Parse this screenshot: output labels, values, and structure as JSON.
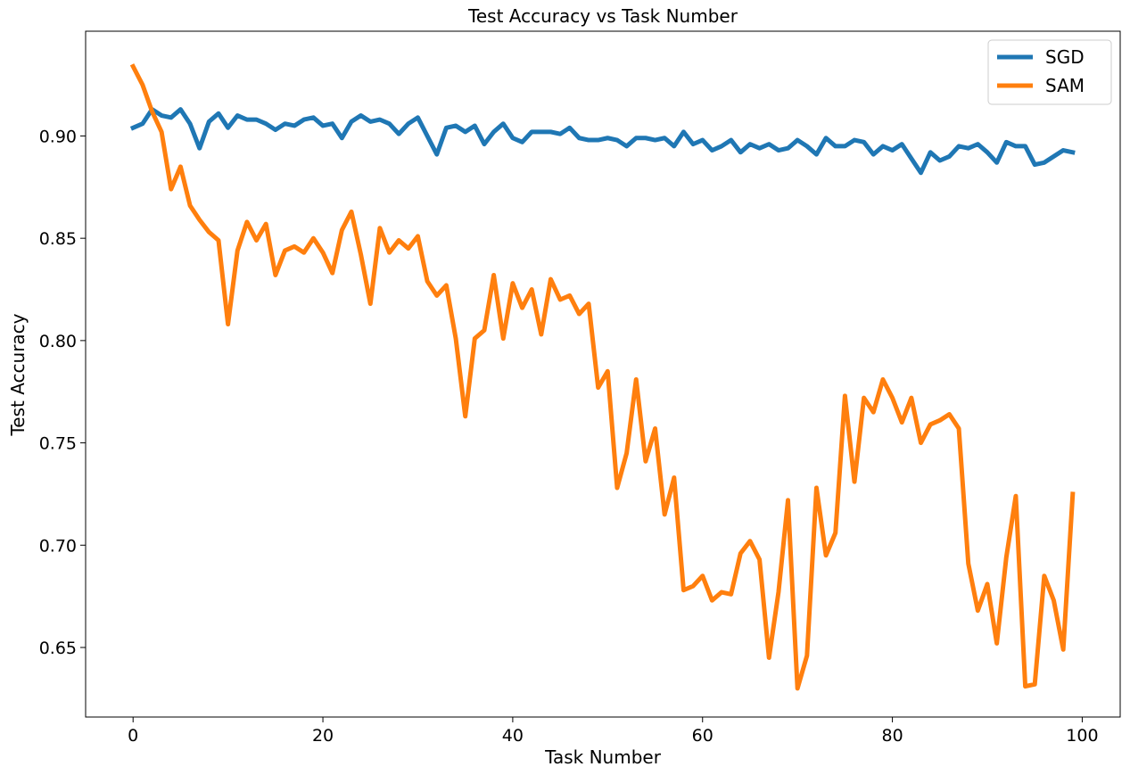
{
  "chart_data": {
    "type": "line",
    "title": "Test Accuracy vs Task Number",
    "xlabel": "Task Number",
    "ylabel": "Test Accuracy",
    "xlim": [
      -5,
      104
    ],
    "ylim": [
      0.616,
      0.9512
    ],
    "xticks": [
      0,
      20,
      40,
      60,
      80,
      100
    ],
    "yticks": [
      0.65,
      0.7,
      0.75,
      0.8,
      0.85,
      0.9
    ],
    "xtick_labels": [
      "0",
      "20",
      "40",
      "60",
      "80",
      "100"
    ],
    "ytick_labels": [
      "0.65",
      "0.70",
      "0.75",
      "0.80",
      "0.85",
      "0.90"
    ],
    "grid": false,
    "legend_position": "top-right",
    "series": [
      {
        "name": "SGD",
        "color": "#1f77b4",
        "values": [
          0.904,
          0.906,
          0.913,
          0.91,
          0.909,
          0.913,
          0.906,
          0.894,
          0.907,
          0.911,
          0.904,
          0.91,
          0.908,
          0.908,
          0.906,
          0.903,
          0.906,
          0.905,
          0.908,
          0.909,
          0.905,
          0.906,
          0.899,
          0.907,
          0.91,
          0.907,
          0.908,
          0.906,
          0.901,
          0.906,
          0.909,
          0.9,
          0.891,
          0.904,
          0.905,
          0.902,
          0.905,
          0.896,
          0.902,
          0.906,
          0.899,
          0.897,
          0.902,
          0.902,
          0.902,
          0.901,
          0.904,
          0.899,
          0.898,
          0.898,
          0.899,
          0.898,
          0.895,
          0.899,
          0.899,
          0.898,
          0.899,
          0.895,
          0.902,
          0.896,
          0.898,
          0.893,
          0.895,
          0.898,
          0.892,
          0.896,
          0.894,
          0.896,
          0.893,
          0.894,
          0.898,
          0.895,
          0.891,
          0.899,
          0.895,
          0.895,
          0.898,
          0.897,
          0.891,
          0.895,
          0.893,
          0.896,
          0.889,
          0.882,
          0.892,
          0.888,
          0.89,
          0.895,
          0.894,
          0.896,
          0.892,
          0.887,
          0.897,
          0.895,
          0.895,
          0.886,
          0.887,
          0.89,
          0.893,
          0.892
        ]
      },
      {
        "name": "SAM",
        "color": "#ff7f0e",
        "values": [
          0.934,
          0.925,
          0.912,
          0.902,
          0.874,
          0.885,
          0.866,
          0.859,
          0.853,
          0.849,
          0.808,
          0.844,
          0.858,
          0.849,
          0.857,
          0.832,
          0.844,
          0.846,
          0.843,
          0.85,
          0.843,
          0.833,
          0.854,
          0.863,
          0.842,
          0.818,
          0.855,
          0.843,
          0.849,
          0.845,
          0.851,
          0.829,
          0.822,
          0.827,
          0.801,
          0.763,
          0.801,
          0.805,
          0.832,
          0.801,
          0.828,
          0.816,
          0.825,
          0.803,
          0.83,
          0.82,
          0.822,
          0.813,
          0.818,
          0.777,
          0.785,
          0.728,
          0.745,
          0.781,
          0.741,
          0.757,
          0.715,
          0.733,
          0.678,
          0.68,
          0.685,
          0.673,
          0.677,
          0.676,
          0.696,
          0.702,
          0.693,
          0.645,
          0.677,
          0.722,
          0.63,
          0.646,
          0.728,
          0.695,
          0.706,
          0.773,
          0.731,
          0.772,
          0.765,
          0.781,
          0.772,
          0.76,
          0.772,
          0.75,
          0.759,
          0.761,
          0.764,
          0.757,
          0.691,
          0.668,
          0.681,
          0.652,
          0.694,
          0.724,
          0.631,
          0.632,
          0.685,
          0.673,
          0.649,
          0.725
        ]
      }
    ]
  }
}
